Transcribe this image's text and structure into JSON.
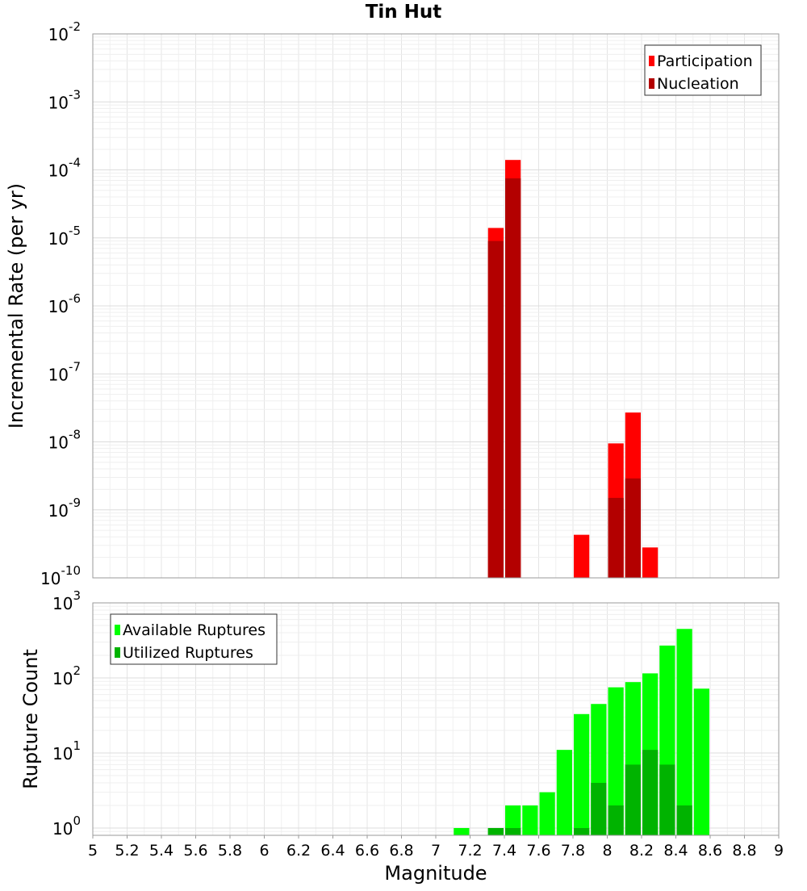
{
  "title": "Tin Hut",
  "x_axis_label": "Magnitude",
  "chart_data": [
    {
      "type": "bar",
      "scale": "log",
      "ylabel": "Incremental Rate (per yr)",
      "xlim": [
        5,
        9
      ],
      "ylim": [
        1e-10,
        0.01
      ],
      "y_tick_exponents": [
        "-2",
        "-3",
        "-4",
        "-5",
        "-6",
        "-7",
        "-8",
        "-9",
        "-10"
      ],
      "legend_position": "top-right",
      "legend": [
        "Participation",
        "Nucleation"
      ],
      "series": [
        {
          "name": "Participation",
          "color": "#ff0000",
          "x": [
            7.35,
            7.45,
            7.85,
            8.05,
            8.15,
            8.25
          ],
          "values": [
            1.4e-05,
            0.00014,
            4.3e-10,
            9.5e-09,
            2.7e-08,
            2.8e-10
          ]
        },
        {
          "name": "Nucleation",
          "color": "#b30000",
          "x": [
            7.35,
            7.45,
            8.05,
            8.15
          ],
          "values": [
            9e-06,
            7.5e-05,
            1.5e-09,
            2.9e-09
          ]
        }
      ]
    },
    {
      "type": "bar",
      "scale": "log",
      "ylabel": "Rupture Count",
      "xlim": [
        5,
        9
      ],
      "ylim": [
        0.8,
        1000
      ],
      "y_tick_exponents": [
        "3",
        "2",
        "1",
        "0"
      ],
      "legend_position": "top-left",
      "legend": [
        "Available Ruptures",
        "Utilized Ruptures"
      ],
      "series": [
        {
          "name": "Available Ruptures",
          "color": "#00ff00",
          "x": [
            7.15,
            7.35,
            7.45,
            7.55,
            7.65,
            7.75,
            7.85,
            7.95,
            8.05,
            8.15,
            8.25,
            8.35,
            8.45,
            8.55
          ],
          "values": [
            1,
            1,
            2,
            2,
            3,
            11,
            33,
            45,
            75,
            88,
            115,
            270,
            450,
            72
          ]
        },
        {
          "name": "Utilized Ruptures",
          "color": "#00b300",
          "x": [
            7.35,
            7.45,
            7.85,
            7.95,
            8.05,
            8.15,
            8.25,
            8.35,
            8.45
          ],
          "values": [
            1,
            1,
            1,
            4,
            2,
            7,
            11,
            7,
            2
          ]
        }
      ]
    }
  ],
  "x_ticks": [
    "5",
    "5.2",
    "5.4",
    "5.6",
    "5.8",
    "6",
    "6.2",
    "6.4",
    "6.6",
    "6.8",
    "7",
    "7.2",
    "7.4",
    "7.6",
    "7.8",
    "8",
    "8.2",
    "8.4",
    "8.6",
    "8.8",
    "9"
  ]
}
